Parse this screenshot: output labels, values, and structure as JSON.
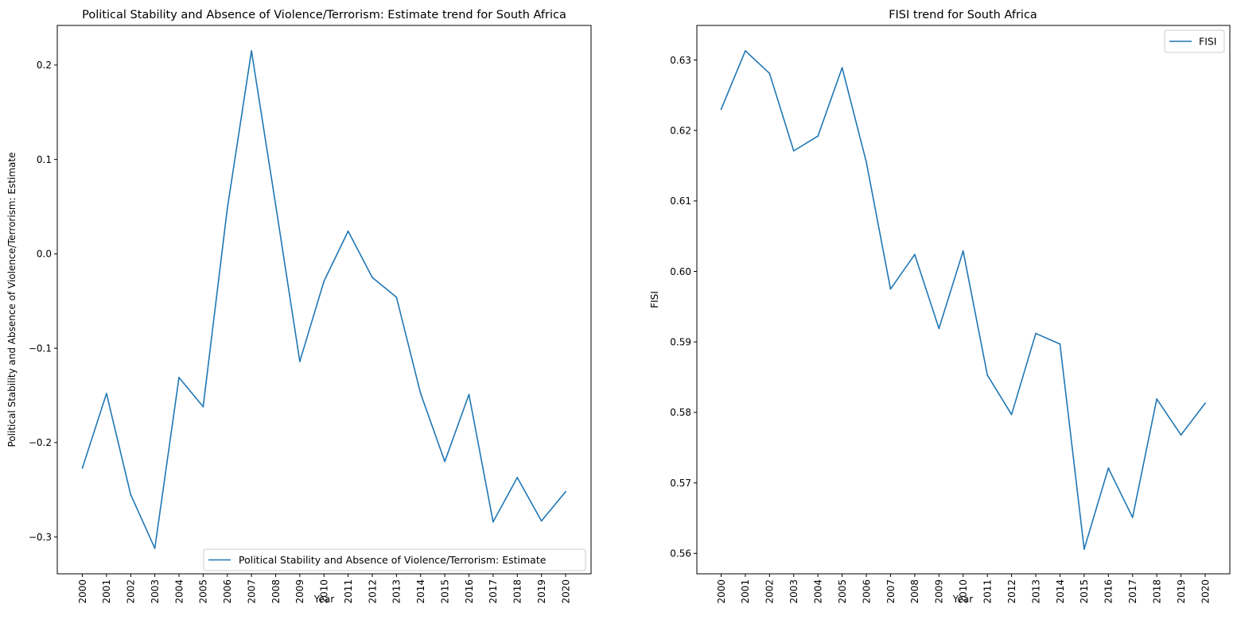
{
  "chart_data": [
    {
      "type": "line",
      "title": "Political Stability and Absence of Violence/Terrorism: Estimate trend for South Africa",
      "xlabel": "Year",
      "ylabel": "Political Stability and Absence of Violence/Terrorism: Estimate",
      "x": [
        "2000",
        "2001",
        "2002",
        "2003",
        "2004",
        "2005",
        "2006",
        "2007",
        "2008",
        "2009",
        "2010",
        "2011",
        "2012",
        "2013",
        "2014",
        "2015",
        "2016",
        "2017",
        "2018",
        "2019",
        "2020"
      ],
      "series": [
        {
          "name": "Political Stability and Absence of Violence/Terrorism: Estimate",
          "color": "#1f77b4",
          "values": [
            -0.227,
            -0.148,
            -0.255,
            -0.312,
            -0.131,
            -0.162,
            0.048,
            0.215,
            0.052,
            -0.114,
            -0.029,
            0.024,
            -0.025,
            -0.046,
            -0.148,
            -0.22,
            -0.149,
            -0.284,
            -0.237,
            -0.283,
            -0.252
          ]
        }
      ],
      "ylim": [
        -0.339,
        0.242
      ],
      "yticks": [
        -0.3,
        -0.2,
        -0.1,
        0.0,
        0.1,
        0.2
      ],
      "ytick_labels": [
        "−0.3",
        "−0.2",
        "−0.1",
        "0.0",
        "0.1",
        "0.2"
      ],
      "legend_position": "lower right",
      "grid": false
    },
    {
      "type": "line",
      "title": "FISI trend for South Africa",
      "xlabel": "Year",
      "ylabel": "FISI",
      "x": [
        "2000",
        "2001",
        "2002",
        "2003",
        "2004",
        "2005",
        "2006",
        "2007",
        "2008",
        "2009",
        "2010",
        "2011",
        "2012",
        "2013",
        "2014",
        "2015",
        "2016",
        "2017",
        "2018",
        "2019",
        "2020"
      ],
      "series": [
        {
          "name": "FISI",
          "color": "#1f77b4",
          "values": [
            0.623,
            0.6313,
            0.6281,
            0.6171,
            0.6192,
            0.6289,
            0.6155,
            0.5975,
            0.6024,
            0.5919,
            0.6029,
            0.5853,
            0.5797,
            0.5912,
            0.5897,
            0.5606,
            0.5721,
            0.5651,
            0.5819,
            0.5768,
            0.5813
          ]
        }
      ],
      "ylim": [
        0.5571,
        0.6349
      ],
      "yticks": [
        0.56,
        0.57,
        0.58,
        0.59,
        0.6,
        0.61,
        0.62,
        0.63
      ],
      "ytick_labels": [
        "0.56",
        "0.57",
        "0.58",
        "0.59",
        "0.60",
        "0.61",
        "0.62",
        "0.63"
      ],
      "legend_position": "upper right",
      "grid": false
    }
  ]
}
